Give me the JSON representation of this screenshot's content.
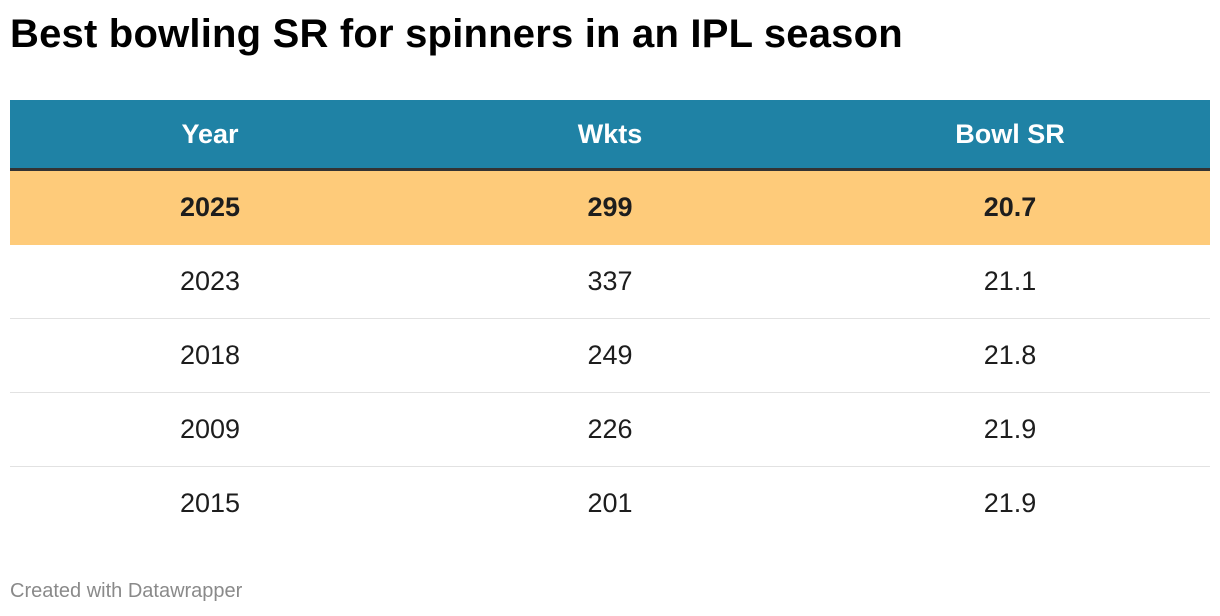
{
  "title": "Best bowling SR for spinners in an IPL season",
  "footer": "Created with Datawrapper",
  "colors": {
    "header_background": "#1f82a5",
    "header_text": "#ffffff",
    "highlight_row": "#fecb7a",
    "divider": "#e2e2e2"
  },
  "chart_data": {
    "type": "table",
    "title": "Best bowling SR for spinners in an IPL season",
    "columns": [
      "Year",
      "Wkts",
      "Bowl SR"
    ],
    "rows": [
      {
        "year": "2025",
        "wkts": "299",
        "sr": "20.7",
        "highlighted": true
      },
      {
        "year": "2023",
        "wkts": "337",
        "sr": "21.1",
        "highlighted": false
      },
      {
        "year": "2018",
        "wkts": "249",
        "sr": "21.8",
        "highlighted": false
      },
      {
        "year": "2009",
        "wkts": "226",
        "sr": "21.9",
        "highlighted": false
      },
      {
        "year": "2015",
        "wkts": "201",
        "sr": "21.9",
        "highlighted": false
      }
    ]
  }
}
